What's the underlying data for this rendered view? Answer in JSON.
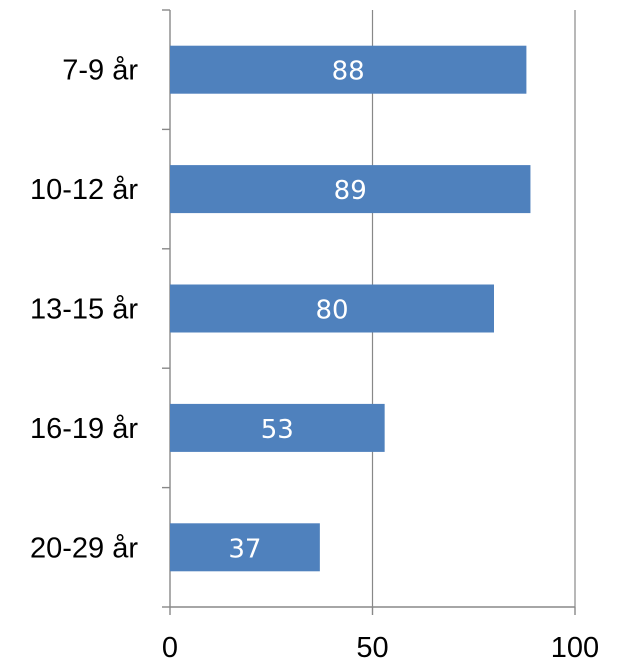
{
  "chart_data": {
    "type": "bar",
    "orientation": "horizontal",
    "title": "",
    "xlabel": "",
    "ylabel": "",
    "categories": [
      "7-9 år",
      "10-12 år",
      "13-15 år",
      "16-19 år",
      "20-29 år"
    ],
    "values": [
      88,
      89,
      80,
      53,
      37
    ],
    "data_labels": [
      "88",
      "89",
      "80",
      "53",
      "37"
    ],
    "xlim": [
      0,
      100
    ],
    "x_ticks": [
      0,
      50,
      100
    ],
    "x_tick_labels": [
      "0",
      "50",
      "100"
    ],
    "grid": "vertical",
    "legend": "none",
    "colors": {
      "bar": "#4f81bd",
      "grid": "#888888",
      "axis": "#888888",
      "label": "#000000",
      "data_label": "#ffffff"
    }
  }
}
